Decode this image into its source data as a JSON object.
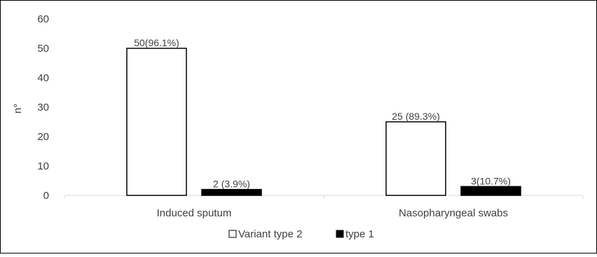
{
  "chart_data": {
    "type": "bar",
    "title": "",
    "xlabel": "",
    "ylabel": "n°",
    "ylim": [
      0,
      60
    ],
    "yticks": [
      0,
      10,
      20,
      30,
      40,
      50,
      60
    ],
    "grid": false,
    "legend_position": "bottom",
    "categories": [
      "Induced sputum",
      "Nasopharyngeal swabs"
    ],
    "series": [
      {
        "name": "Variant type 2",
        "values": [
          50,
          25
        ],
        "data_labels": [
          "50(96.1%)",
          "25 (89.3%)"
        ],
        "fill": "#ffffff",
        "stroke": "#000000"
      },
      {
        "name": "type 1",
        "values": [
          2,
          3
        ],
        "data_labels": [
          "2 (3.9%)",
          "3(10.7%)"
        ],
        "fill": "#000000",
        "stroke": "#000000"
      }
    ]
  }
}
